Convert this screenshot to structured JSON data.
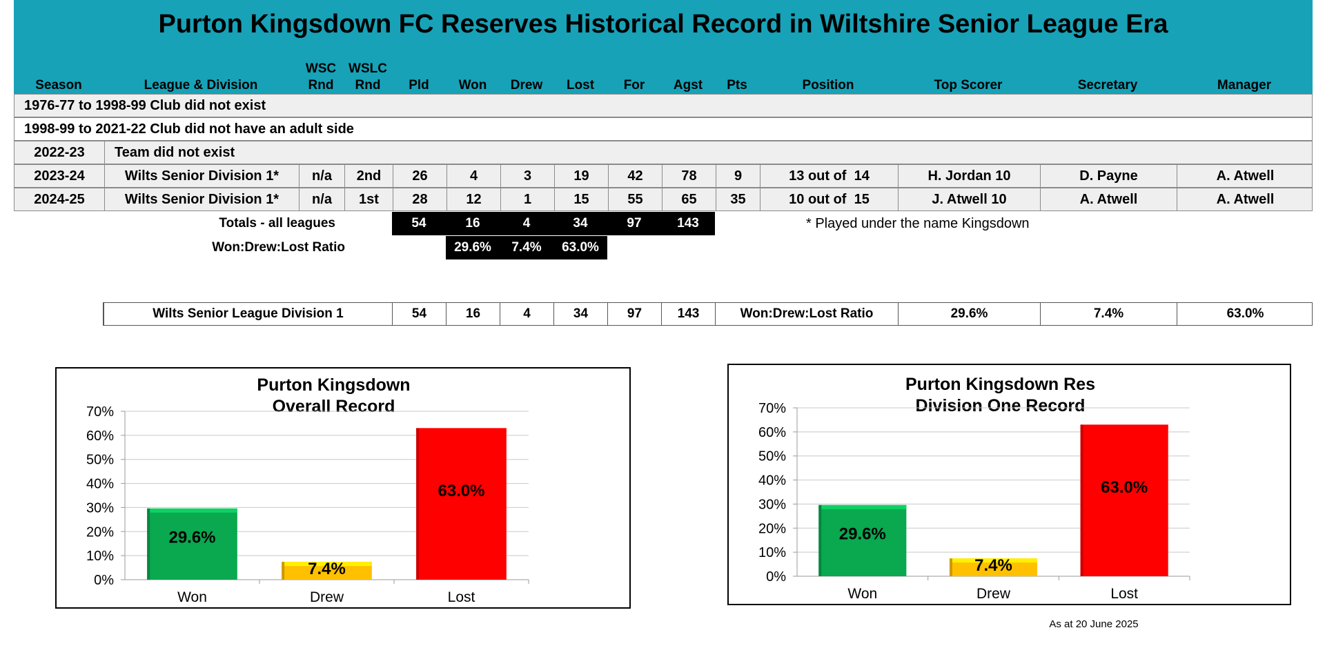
{
  "page_title": "Purton Kingsdown FC Reserves Historical Record in Wiltshire Senior League Era",
  "columns": {
    "season": "Season",
    "league": "League & Division",
    "wsc_top": "WSC",
    "wsc_bot": "Rnd",
    "wslc_top": "WSLC",
    "wslc_bot": "Rnd",
    "pld": "Pld",
    "won": "Won",
    "drew": "Drew",
    "lost": "Lost",
    "for": "For",
    "agst": "Agst",
    "pts": "Pts",
    "position": "Position",
    "top_scorer": "Top Scorer",
    "secretary": "Secretary",
    "manager": "Manager"
  },
  "notes_rows": [
    "1976-77 to 1998-99 Club did not exist",
    "1998-99 to 2021-22 Club did not have an adult side"
  ],
  "row_2022": {
    "season": "2022-23",
    "text": "Team did not exist"
  },
  "seasons": [
    {
      "season": "2023-24",
      "league": "Wilts Senior Division 1*",
      "wsc": "n/a",
      "wslc": "2nd",
      "pld": "26",
      "won": "4",
      "drew": "3",
      "lost": "19",
      "for": "42",
      "agst": "78",
      "pts": "9",
      "position": "13 out of  14",
      "top_scorer": "H. Jordan 10",
      "secretary": "D. Payne",
      "manager": "A. Atwell"
    },
    {
      "season": "2024-25",
      "league": "Wilts Senior Division 1*",
      "wsc": "n/a",
      "wslc": "1st",
      "pld": "28",
      "won": "12",
      "drew": "1",
      "lost": "15",
      "for": "55",
      "agst": "65",
      "pts": "35",
      "position": "10 out of  15",
      "top_scorer": "J. Atwell 10",
      "secretary": "A. Atwell",
      "manager": "A. Atwell"
    }
  ],
  "totals": {
    "label": "Totals - all leagues",
    "pld": "54",
    "won": "16",
    "drew": "4",
    "lost": "34",
    "for": "97",
    "agst": "143",
    "ratio_label": "Won:Drew:Lost Ratio",
    "won_pct": "29.6%",
    "drew_pct": "7.4%",
    "lost_pct": "63.0%",
    "footnote": "* Played under the name Kingsdown"
  },
  "summary": {
    "label": "Wilts Senior League Division 1",
    "pld": "54",
    "won": "16",
    "drew": "4",
    "lost": "34",
    "for": "97",
    "agst": "143",
    "ratio_label": "Won:Drew:Lost Ratio",
    "won_pct": "29.6%",
    "drew_pct": "7.4%",
    "lost_pct": "63.0%"
  },
  "chart_data": [
    {
      "type": "bar",
      "title": "Purton Kingsdown\nOverall Record",
      "categories": [
        "Won",
        "Drew",
        "Lost"
      ],
      "values": [
        29.6,
        7.4,
        63.0
      ],
      "data_labels": [
        "29.6%",
        "7.4%",
        "63.0%"
      ],
      "colors": [
        "#0aa84f",
        "#ffc000",
        "#ff0000"
      ],
      "ylim": [
        0,
        70
      ],
      "yticks": [
        "0%",
        "10%",
        "20%",
        "30%",
        "40%",
        "50%",
        "60%",
        "70%"
      ],
      "grid": true,
      "xlabel": "",
      "ylabel": ""
    },
    {
      "type": "bar",
      "title": "Purton Kingsdown Res\nDivision One Record",
      "categories": [
        "Won",
        "Drew",
        "Lost"
      ],
      "values": [
        29.6,
        7.4,
        63.0
      ],
      "data_labels": [
        "29.6%",
        "7.4%",
        "63.0%"
      ],
      "colors": [
        "#0aa84f",
        "#ffc000",
        "#ff0000"
      ],
      "ylim": [
        0,
        70
      ],
      "yticks": [
        "0%",
        "10%",
        "20%",
        "30%",
        "40%",
        "50%",
        "60%",
        "70%"
      ],
      "grid": true,
      "xlabel": "",
      "ylabel": ""
    }
  ],
  "footer": "As at 20 June 2025"
}
